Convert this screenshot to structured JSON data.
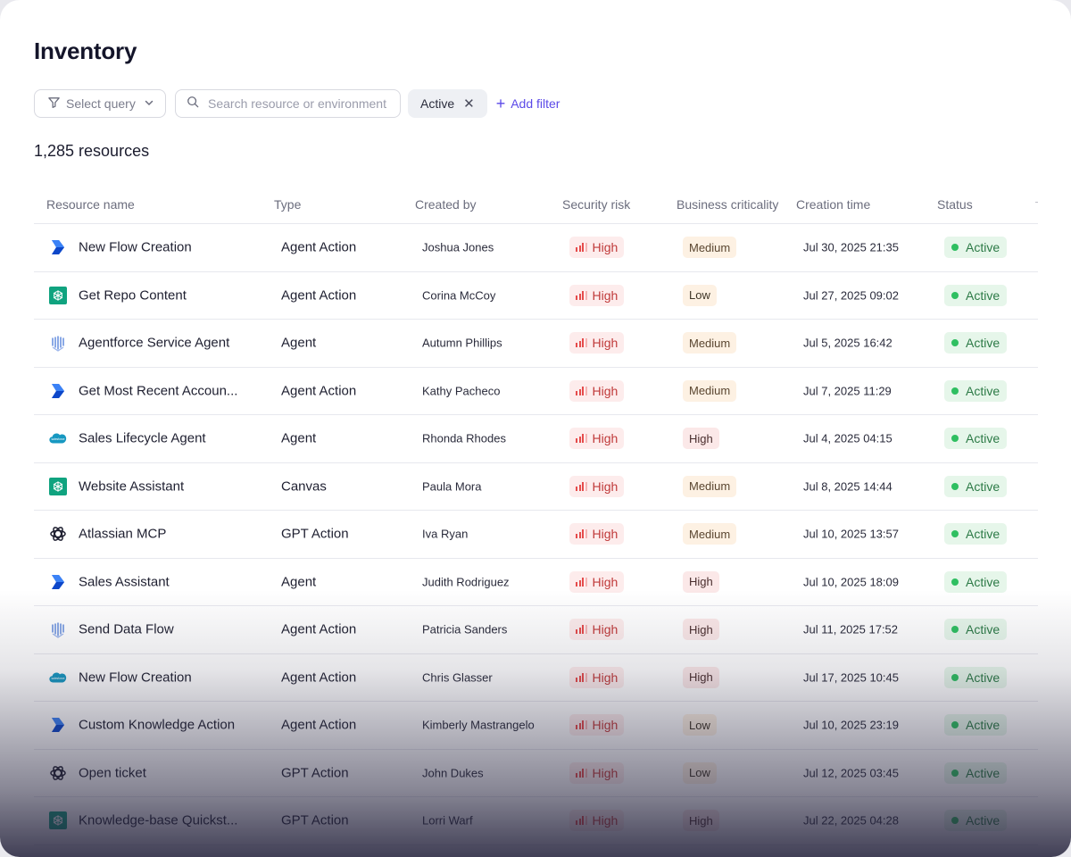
{
  "page": {
    "title": "Inventory"
  },
  "toolbar": {
    "query_label": "Select query",
    "search_placeholder": "Search resource or environment",
    "active_filter": "Active",
    "add_filter": "Add filter"
  },
  "summary": {
    "count_text": "1,285 resources"
  },
  "table": {
    "columns": [
      "Resource name",
      "Type",
      "Created by",
      "Security risk",
      "Business criticality",
      "Creation time",
      "Status"
    ],
    "rows": [
      {
        "icon": "power-automate-icon",
        "name": "New Flow Creation",
        "type": "Agent Action",
        "created_by": "Joshua Jones",
        "risk": "High",
        "criticality": "Medium",
        "created": "Jul 30, 2025 21:35",
        "status": "Active"
      },
      {
        "icon": "openai-green-icon",
        "name": "Get Repo Content",
        "type": "Agent Action",
        "created_by": "Corina McCoy",
        "risk": "High",
        "criticality": "Low",
        "created": "Jul 27, 2025 09:02",
        "status": "Active"
      },
      {
        "icon": "agentforce-icon",
        "name": "Agentforce Service Agent",
        "type": "Agent",
        "created_by": "Autumn Phillips",
        "risk": "High",
        "criticality": "Medium",
        "created": "Jul 5, 2025 16:42",
        "status": "Active"
      },
      {
        "icon": "power-automate-icon",
        "name": "Get Most Recent Accoun...",
        "type": "Agent Action",
        "created_by": "Kathy Pacheco",
        "risk": "High",
        "criticality": "Medium",
        "created": "Jul 7, 2025 11:29",
        "status": "Active"
      },
      {
        "icon": "salesforce-icon",
        "name": "Sales Lifecycle Agent",
        "type": "Agent",
        "created_by": "Rhonda Rhodes",
        "risk": "High",
        "criticality": "High",
        "created": "Jul 4, 2025 04:15",
        "status": "Active"
      },
      {
        "icon": "openai-green-icon",
        "name": "Website Assistant",
        "type": "Canvas",
        "created_by": "Paula Mora",
        "risk": "High",
        "criticality": "Medium",
        "created": "Jul 8, 2025 14:44",
        "status": "Active"
      },
      {
        "icon": "openai-icon",
        "name": "Atlassian MCP",
        "type": "GPT Action",
        "created_by": "Iva Ryan",
        "risk": "High",
        "criticality": "Medium",
        "created": "Jul 10, 2025 13:57",
        "status": "Active"
      },
      {
        "icon": "power-automate-icon",
        "name": "Sales Assistant",
        "type": "Agent",
        "created_by": "Judith Rodriguez",
        "risk": "High",
        "criticality": "High",
        "created": "Jul 10, 2025 18:09",
        "status": "Active"
      },
      {
        "icon": "agentforce-icon",
        "name": "Send Data Flow",
        "type": "Agent Action",
        "created_by": "Patricia Sanders",
        "risk": "High",
        "criticality": "High",
        "created": "Jul 11, 2025 17:52",
        "status": "Active"
      },
      {
        "icon": "salesforce-icon",
        "name": "New Flow Creation",
        "type": "Agent Action",
        "created_by": "Chris Glasser",
        "risk": "High",
        "criticality": "High",
        "created": "Jul 17, 2025 10:45",
        "status": "Active"
      },
      {
        "icon": "power-automate-icon",
        "name": "Custom Knowledge Action",
        "type": "Agent Action",
        "created_by": "Kimberly Mastrangelo",
        "risk": "High",
        "criticality": "Low",
        "created": "Jul 10, 2025 23:19",
        "status": "Active"
      },
      {
        "icon": "openai-icon",
        "name": "Open ticket",
        "type": "GPT Action",
        "created_by": "John Dukes",
        "risk": "High",
        "criticality": "Low",
        "created": "Jul 12, 2025 03:45",
        "status": "Active"
      },
      {
        "icon": "openai-green-icon",
        "name": "Knowledge-base Quickst...",
        "type": "GPT Action",
        "created_by": "Lorri Warf",
        "risk": "High",
        "criticality": "High",
        "created": "Jul 22, 2025 04:28",
        "status": "Active"
      }
    ]
  },
  "colors": {
    "accent": "#5b49e8",
    "risk_high": "#e54c4c",
    "status_active": "#2fbf61",
    "salesforce": "#1798c1",
    "power_automate": "#2563eb",
    "openai_green": "#10a37f"
  }
}
